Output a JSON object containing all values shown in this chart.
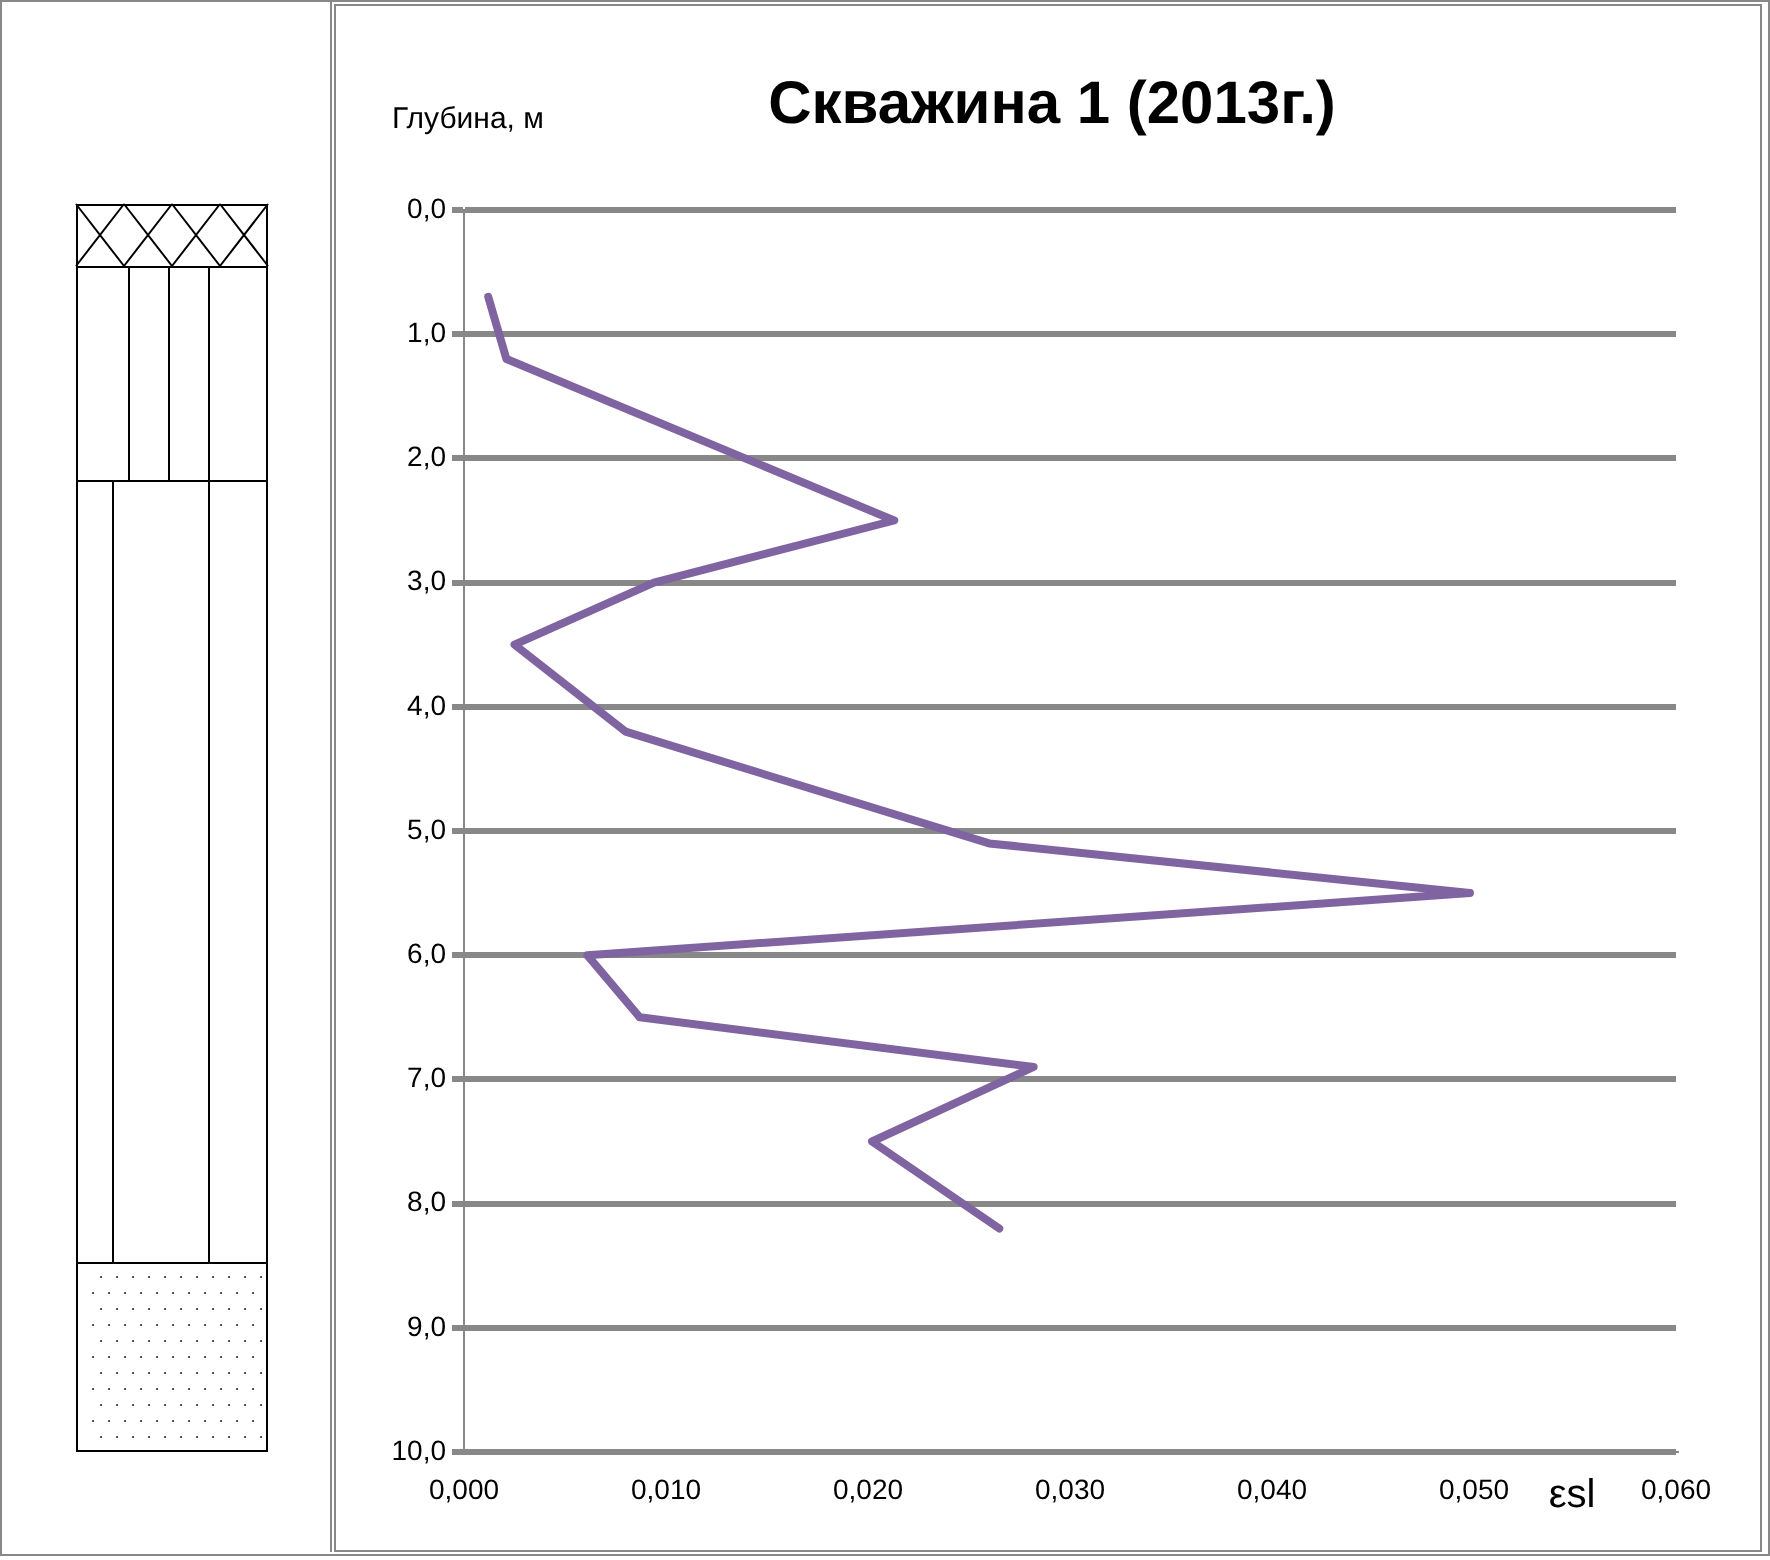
{
  "chart_data": {
    "type": "line",
    "title": "Скважина 1 (2013г.)",
    "xlabel": "εsl",
    "ylabel": "Глубина, м",
    "x": [
      0.0012,
      0.0021,
      0.0213,
      0.0094,
      0.0025,
      0.008,
      0.026,
      0.0498,
      0.0061,
      0.0087,
      0.0282,
      0.0202,
      0.0265
    ],
    "series": [
      {
        "color": "#8064a2",
        "values": [
          0.7,
          1.2,
          2.5,
          3.0,
          3.5,
          4.2,
          5.1,
          5.5,
          6.0,
          6.5,
          6.9,
          7.5,
          8.2
        ]
      }
    ],
    "xlim": [
      0,
      0.06
    ],
    "xticks": [
      {
        "value": 0,
        "label": "0,000"
      },
      {
        "value": 0.01,
        "label": "0,010"
      },
      {
        "value": 0.02,
        "label": "0,020"
      },
      {
        "value": 0.03,
        "label": "0,030"
      },
      {
        "value": 0.04,
        "label": "0,040"
      },
      {
        "value": 0.05,
        "label": "0,050"
      },
      {
        "value": 0.06,
        "label": "0,060"
      }
    ],
    "ylim": [
      10,
      0
    ],
    "yticks": [
      {
        "value": 0,
        "label": "0,0"
      },
      {
        "value": 1,
        "label": "1,0"
      },
      {
        "value": 2,
        "label": "2,0"
      },
      {
        "value": 3,
        "label": "3,0"
      },
      {
        "value": 4,
        "label": "4,0"
      },
      {
        "value": 5,
        "label": "5,0"
      },
      {
        "value": 6,
        "label": "6,0"
      },
      {
        "value": 7,
        "label": "7,0"
      },
      {
        "value": 8,
        "label": "8,0"
      },
      {
        "value": 9,
        "label": "9,0"
      },
      {
        "value": 10,
        "label": "10,0"
      }
    ],
    "grid": "y",
    "marker": "none",
    "line_style": "solid",
    "legend": false
  }
}
